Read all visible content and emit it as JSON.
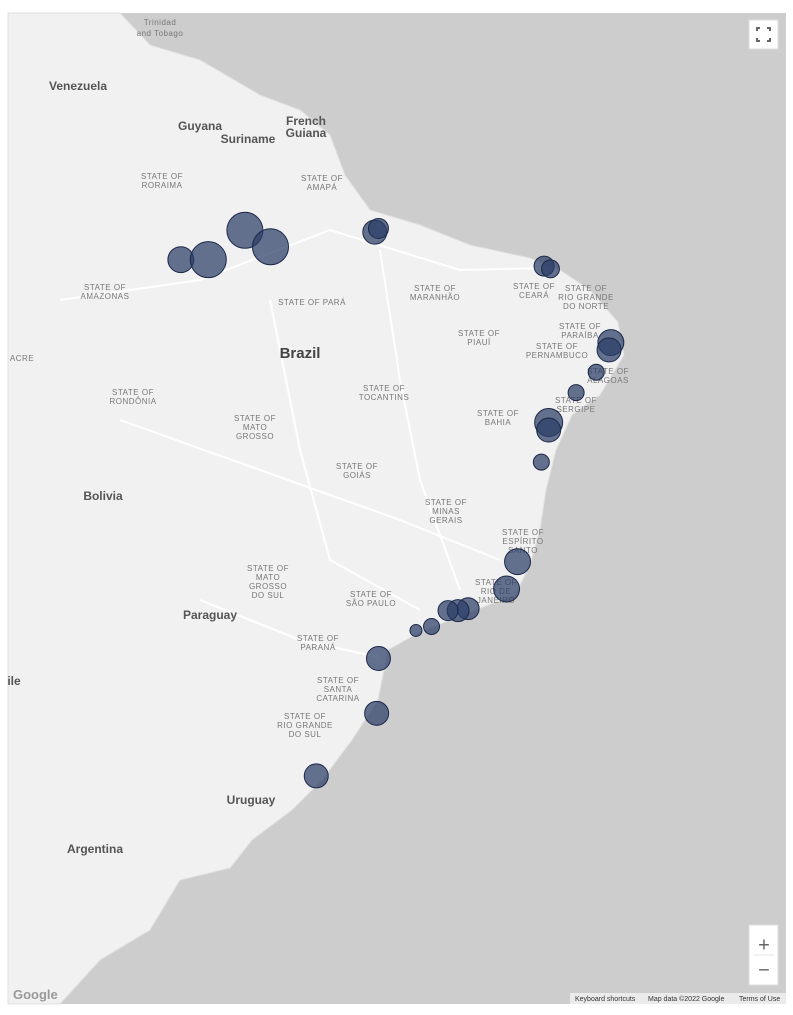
{
  "map": {
    "places": [
      "Trinidad",
      "and Tobago",
      "Venezuela",
      "Guyana",
      "Suriname",
      "French",
      "Guiana",
      "STATE OF",
      "RORAIMA",
      "STATE OF",
      "AMAPÁ",
      "STATE OF",
      "AMAZONAS",
      "STATE OF PARÁ",
      "STATE OF",
      "MARANHÃO",
      "STATE OF",
      "CEARÁ",
      "STATE OF",
      "RIO GRANDE",
      "DO NORTE",
      "STATE OF",
      "PARAÍBA",
      "STATE OF",
      "PERNAMBUCO",
      "STATE OF",
      "PIAUÍ",
      "Brazil",
      "ACRE",
      "STATE OF",
      "ALAGOAS",
      "STATE OF",
      "RONDÔNIA",
      "STATE OF",
      "TOCANTINS",
      "STATE OF",
      "SERGIPE",
      "STATE OF",
      "MATO",
      "GROSSO",
      "STATE OF",
      "BAHIA",
      "STATE OF",
      "GOIÁS",
      "Bolivia",
      "STATE OF",
      "MINAS",
      "GERAIS",
      "STATE OF",
      "ESPÍRITO",
      "SANTO",
      "STATE OF",
      "MATO",
      "GROSSO",
      "DO SUL",
      "STATE OF",
      "SÃO PAULO",
      "STATE OF",
      "RIO DE",
      "JANEIRO",
      "Paraguay",
      "STATE OF",
      "PARANÁ",
      "ile",
      "STATE OF",
      "SANTA",
      "CATARINA",
      "STATE OF",
      "RIO GRANDE",
      "DO SUL",
      "Uruguay",
      "Argentina"
    ],
    "markers": [
      {
        "lat": -3.3,
        "lon": -58.4,
        "value": 42
      },
      {
        "lat": -3.3,
        "lon": -56.9,
        "value": 81
      },
      {
        "lat": -1.7,
        "lon": -54.9,
        "value": 81
      },
      {
        "lat": -2.6,
        "lon": -53.5,
        "value": 81
      },
      {
        "lat": -1.8,
        "lon": -47.8,
        "value": 36
      },
      {
        "lat": -1.6,
        "lon": -47.6,
        "value": 25
      },
      {
        "lat": -3.65,
        "lon": -38.55,
        "value": 25
      },
      {
        "lat": -3.8,
        "lon": -38.2,
        "value": 20
      },
      {
        "lat": -7.8,
        "lon": -34.9,
        "value": 42
      },
      {
        "lat": -8.2,
        "lon": -35.0,
        "value": 36
      },
      {
        "lat": -9.4,
        "lon": -35.7,
        "value": 16
      },
      {
        "lat": -10.5,
        "lon": -36.8,
        "value": 16
      },
      {
        "lat": -12.1,
        "lon": -38.3,
        "value": 49
      },
      {
        "lat": -12.5,
        "lon": -38.3,
        "value": 36
      },
      {
        "lat": -14.2,
        "lon": -38.7,
        "value": 16
      },
      {
        "lat": -19.4,
        "lon": -40.0,
        "value": 42
      },
      {
        "lat": -20.8,
        "lon": -40.6,
        "value": 42
      },
      {
        "lat": -21.8,
        "lon": -42.7,
        "value": 30
      },
      {
        "lat": -21.9,
        "lon": -43.25,
        "value": 30
      },
      {
        "lat": -21.9,
        "lon": -43.8,
        "value": 25
      },
      {
        "lat": -22.7,
        "lon": -44.7,
        "value": 16
      },
      {
        "lat": -22.9,
        "lon": -45.55,
        "value": 9
      },
      {
        "lat": -24.3,
        "lon": -47.6,
        "value": 36
      },
      {
        "lat": -27.0,
        "lon": -47.7,
        "value": 36
      },
      {
        "lat": -30.0,
        "lon": -51.0,
        "value": 36
      }
    ],
    "controls": {
      "zoom_in": "+",
      "zoom_out": "−"
    },
    "footer": {
      "logo": "Google",
      "shortcuts": "Keyboard shortcuts",
      "data": "Map data ©2022 Google",
      "terms": "Terms of Use"
    }
  }
}
